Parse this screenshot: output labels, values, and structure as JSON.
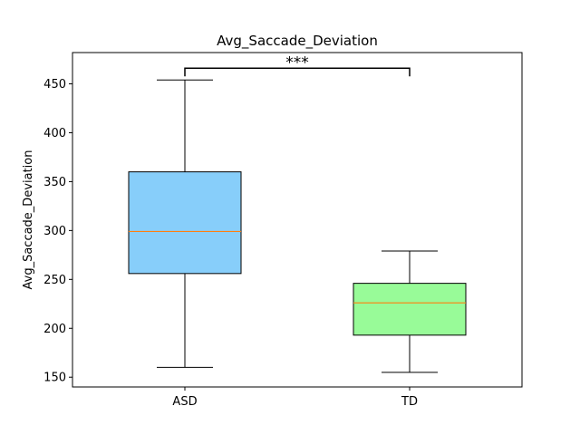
{
  "chart_data": {
    "type": "boxplot",
    "title": "Avg_Saccade_Deviation",
    "xlabel": "",
    "ylabel": "Avg_Saccade_Deviation",
    "ylim": [
      140,
      482
    ],
    "yticks": [
      150,
      200,
      250,
      300,
      350,
      400,
      450
    ],
    "grid": false,
    "categories": [
      "ASD",
      "TD"
    ],
    "boxes": [
      {
        "label": "ASD",
        "whisker_low": 160,
        "q1": 256,
        "median": 299,
        "q3": 360,
        "whisker_high": 454,
        "color": "#87CEFA"
      },
      {
        "label": "TD",
        "whisker_low": 155,
        "q1": 193,
        "median": 226,
        "q3": 246,
        "whisker_high": 279,
        "color": "#98FB98"
      }
    ],
    "median_color": "#FF7F0E",
    "significance": {
      "label": "***",
      "between": [
        "ASD",
        "TD"
      ],
      "y": 466
    }
  }
}
